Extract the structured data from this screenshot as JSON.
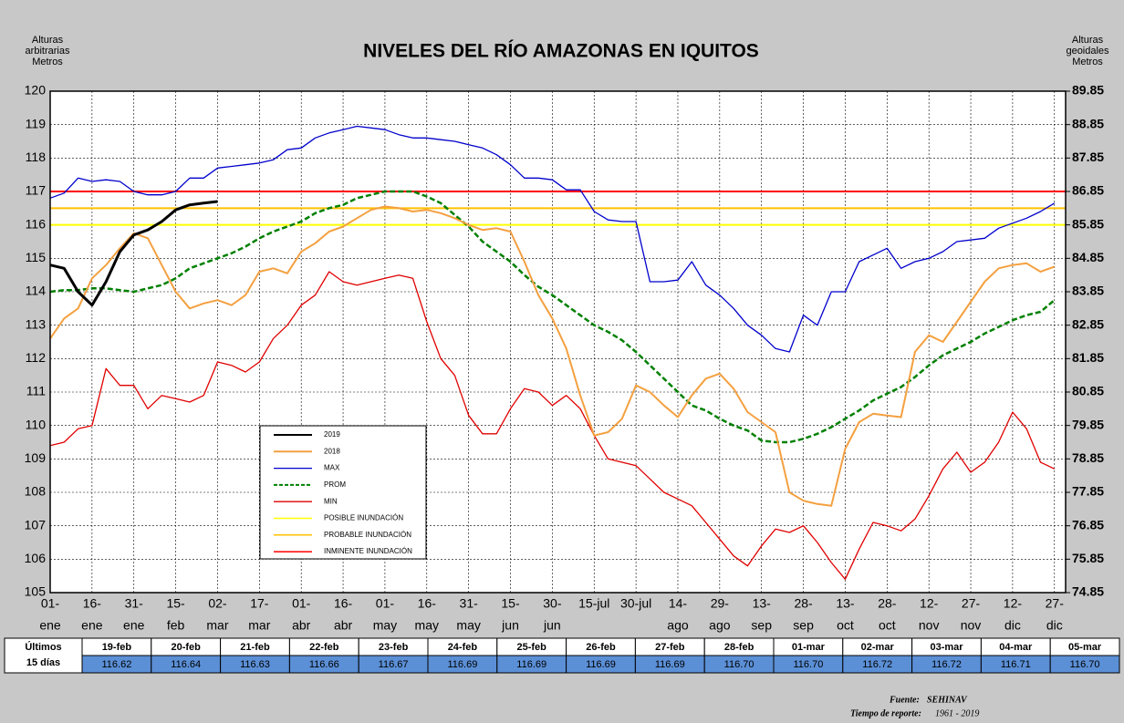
{
  "chart_data": {
    "type": "line",
    "title": "NIVELES DEL RÍO AMAZONAS EN IQUITOS",
    "y_label": [
      "Alturas",
      "arbitrarias",
      "Metros"
    ],
    "y2_label": [
      "Alturas",
      "geoidales",
      "Metros"
    ],
    "x": [
      0,
      5,
      10,
      15,
      20,
      25,
      30,
      35,
      40,
      45,
      50,
      55,
      60,
      65,
      70,
      75,
      80,
      85,
      90,
      95,
      100,
      105,
      110,
      115,
      120,
      125,
      130,
      135,
      140,
      145,
      150,
      155,
      160,
      165,
      170,
      175,
      180,
      185,
      190,
      195,
      200,
      205,
      210,
      215,
      220,
      225,
      230,
      235,
      240,
      245,
      250,
      255,
      260,
      265,
      270,
      275,
      280,
      285,
      290,
      295,
      300,
      305,
      310,
      315,
      320,
      325,
      330,
      335,
      340,
      345,
      350,
      355,
      360
    ],
    "xlim": [
      0,
      364
    ],
    "xticks": [
      {
        "value": 0,
        "label": [
          "01-",
          "ene"
        ]
      },
      {
        "value": 15,
        "label": [
          "16-",
          "ene"
        ]
      },
      {
        "value": 30,
        "label": [
          "31-",
          "ene"
        ]
      },
      {
        "value": 45,
        "label": [
          "15-",
          "feb"
        ]
      },
      {
        "value": 60,
        "label": [
          "02-",
          "mar"
        ]
      },
      {
        "value": 75,
        "label": [
          "17-",
          "mar"
        ]
      },
      {
        "value": 90,
        "label": [
          "01-",
          "abr"
        ]
      },
      {
        "value": 105,
        "label": [
          "16-",
          "abr"
        ]
      },
      {
        "value": 120,
        "label": [
          "01-",
          "may"
        ]
      },
      {
        "value": 135,
        "label": [
          "16-",
          "may"
        ]
      },
      {
        "value": 150,
        "label": [
          "31-",
          "may"
        ]
      },
      {
        "value": 165,
        "label": [
          "15-",
          "jun"
        ]
      },
      {
        "value": 180,
        "label": [
          "30-",
          "jun"
        ]
      },
      {
        "value": 195,
        "label": [
          "15-jul"
        ]
      },
      {
        "value": 210,
        "label": [
          "30-jul"
        ]
      },
      {
        "value": 225,
        "label": [
          "14-",
          "ago"
        ]
      },
      {
        "value": 240,
        "label": [
          "29-",
          "ago"
        ]
      },
      {
        "value": 255,
        "label": [
          "13-",
          "sep"
        ]
      },
      {
        "value": 270,
        "label": [
          "28-",
          "sep"
        ]
      },
      {
        "value": 285,
        "label": [
          "13-",
          "oct"
        ]
      },
      {
        "value": 300,
        "label": [
          "28-",
          "oct"
        ]
      },
      {
        "value": 315,
        "label": [
          "12-",
          "nov"
        ]
      },
      {
        "value": 330,
        "label": [
          "27-",
          "nov"
        ]
      },
      {
        "value": 345,
        "label": [
          "12-",
          "dic"
        ]
      },
      {
        "value": 360,
        "label": [
          "27-",
          "dic"
        ]
      }
    ],
    "ylim": [
      105,
      120
    ],
    "yticks": [
      105,
      106,
      107,
      108,
      109,
      110,
      111,
      112,
      113,
      114,
      115,
      116,
      117,
      118,
      119,
      120
    ],
    "y2lim": [
      74.85,
      89.85
    ],
    "y2ticks": [
      74.85,
      75.85,
      76.85,
      77.85,
      78.85,
      79.85,
      80.85,
      81.85,
      82.85,
      83.85,
      84.85,
      85.85,
      86.85,
      87.85,
      88.85,
      89.85
    ],
    "grid": true,
    "series": [
      {
        "name": "2019",
        "color": "#000000",
        "width": 3,
        "dashed": false,
        "values": [
          114.8,
          114.7,
          114.0,
          113.6,
          114.3,
          115.2,
          115.7,
          115.85,
          116.1,
          116.45,
          116.6,
          116.65,
          116.7,
          null,
          null,
          null,
          null,
          null,
          null,
          null,
          null,
          null,
          null,
          null,
          null,
          null,
          null,
          null,
          null,
          null,
          null,
          null,
          null,
          null,
          null,
          null,
          null,
          null,
          null,
          null,
          null,
          null,
          null,
          null,
          null,
          null,
          null,
          null,
          null,
          null,
          null,
          null,
          null,
          null,
          null,
          null,
          null,
          null,
          null,
          null,
          null,
          null,
          null,
          null,
          null,
          null,
          null,
          null,
          null,
          null,
          null,
          null,
          null
        ]
      },
      {
        "name": "2018",
        "color": "#f4a040",
        "width": 2,
        "dashed": false,
        "values": [
          112.6,
          113.2,
          113.5,
          114.4,
          114.8,
          115.3,
          115.75,
          115.6,
          114.8,
          114.0,
          113.5,
          113.65,
          113.75,
          113.6,
          113.9,
          114.6,
          114.7,
          114.55,
          115.2,
          115.45,
          115.8,
          115.95,
          116.2,
          116.45,
          116.55,
          116.5,
          116.4,
          116.45,
          116.35,
          116.2,
          116.0,
          115.85,
          115.9,
          115.8,
          114.9,
          113.9,
          113.2,
          112.3,
          110.9,
          109.7,
          109.8,
          110.2,
          111.2,
          111.0,
          110.6,
          110.25,
          110.9,
          111.4,
          111.55,
          111.1,
          110.4,
          110.1,
          109.8,
          108.0,
          107.75,
          107.65,
          107.6,
          109.3,
          110.1,
          110.35,
          110.3,
          110.25,
          112.2,
          112.7,
          112.5,
          113.1,
          113.7,
          114.3,
          114.7,
          114.8,
          114.85,
          114.6,
          114.75
        ]
      },
      {
        "name": "MAX",
        "color": "#0000cc",
        "width": 1.3,
        "dashed": false,
        "values": [
          116.8,
          116.95,
          117.4,
          117.3,
          117.35,
          117.3,
          117.0,
          116.9,
          116.9,
          117.0,
          117.4,
          117.4,
          117.7,
          117.75,
          117.8,
          117.85,
          117.95,
          118.25,
          118.3,
          118.6,
          118.75,
          118.85,
          118.95,
          118.9,
          118.85,
          118.7,
          118.6,
          118.6,
          118.55,
          118.5,
          118.4,
          118.3,
          118.1,
          117.8,
          117.4,
          117.4,
          117.35,
          117.05,
          117.05,
          116.4,
          116.15,
          116.1,
          116.1,
          114.3,
          114.3,
          114.35,
          114.9,
          114.2,
          113.9,
          113.5,
          113.0,
          112.7,
          112.3,
          112.2,
          113.3,
          113.0,
          114.0,
          114.0,
          114.9,
          115.1,
          115.3,
          114.7,
          114.9,
          115.0,
          115.2,
          115.5,
          115.55,
          115.6,
          115.9,
          116.05,
          116.2,
          116.4,
          116.65
        ]
      },
      {
        "name": "PROM",
        "color": "#008000",
        "width": 2.5,
        "dashed": true,
        "values": [
          114.0,
          114.05,
          114.05,
          114.1,
          114.1,
          114.05,
          114.0,
          114.1,
          114.2,
          114.4,
          114.7,
          114.85,
          115.0,
          115.15,
          115.35,
          115.6,
          115.8,
          115.95,
          116.1,
          116.35,
          116.5,
          116.6,
          116.8,
          116.9,
          117.0,
          117.0,
          117.0,
          116.85,
          116.65,
          116.3,
          115.95,
          115.5,
          115.2,
          114.9,
          114.5,
          114.15,
          113.9,
          113.6,
          113.3,
          113.0,
          112.8,
          112.55,
          112.2,
          111.8,
          111.4,
          111.0,
          110.6,
          110.45,
          110.2,
          110.0,
          109.85,
          109.55,
          109.5,
          109.5,
          109.6,
          109.75,
          109.95,
          110.2,
          110.45,
          110.75,
          110.95,
          111.15,
          111.45,
          111.8,
          112.1,
          112.3,
          112.5,
          112.75,
          112.95,
          113.15,
          113.3,
          113.4,
          113.75
        ]
      },
      {
        "name": "MIN",
        "color": "#e00000",
        "width": 1.3,
        "dashed": false,
        "values": [
          109.4,
          109.5,
          109.9,
          110.0,
          111.7,
          111.2,
          111.2,
          110.5,
          110.9,
          110.8,
          110.7,
          110.9,
          111.9,
          111.8,
          111.6,
          111.9,
          112.6,
          113.0,
          113.6,
          113.9,
          114.6,
          114.3,
          114.2,
          114.3,
          114.4,
          114.5,
          114.4,
          113.1,
          112.0,
          111.5,
          110.3,
          109.75,
          109.75,
          110.5,
          111.1,
          111.0,
          110.6,
          110.9,
          110.5,
          109.7,
          109.0,
          108.9,
          108.8,
          108.4,
          108.0,
          107.8,
          107.6,
          107.1,
          106.6,
          106.1,
          105.8,
          106.4,
          106.9,
          106.8,
          107.0,
          106.5,
          105.9,
          105.4,
          106.3,
          107.1,
          107.0,
          106.85,
          107.2,
          107.9,
          108.7,
          109.2,
          108.6,
          108.9,
          109.5,
          110.4,
          109.9,
          108.9,
          108.7
        ]
      }
    ],
    "thresholds": [
      {
        "name": "POSIBLE INUNDACIÓN",
        "color": "#ffff00",
        "value": 116
      },
      {
        "name": "PROBABLE INUNDACIÓN",
        "color": "#ffc000",
        "value": 116.5
      },
      {
        "name": "INMINENTE INUNDACIÓN",
        "color": "#ff0000",
        "value": 117
      }
    ]
  },
  "table": {
    "header": [
      "Últimos",
      "15 días"
    ],
    "dates": [
      "19-feb",
      "20-feb",
      "21-feb",
      "22-feb",
      "23-feb",
      "24-feb",
      "25-feb",
      "26-feb",
      "27-feb",
      "28-feb",
      "01-mar",
      "02-mar",
      "03-mar",
      "04-mar",
      "05-mar"
    ],
    "values": [
      "116.62",
      "116.64",
      "116.63",
      "116.66",
      "116.67",
      "116.69",
      "116.69",
      "116.69",
      "116.69",
      "116.70",
      "116.70",
      "116.72",
      "116.72",
      "116.71",
      "116.70"
    ]
  },
  "footer": {
    "source_label": "Fuente:",
    "source": "SEHINAV",
    "period_label": "Tiempo de reporte:",
    "period": "1961 - 2019"
  }
}
